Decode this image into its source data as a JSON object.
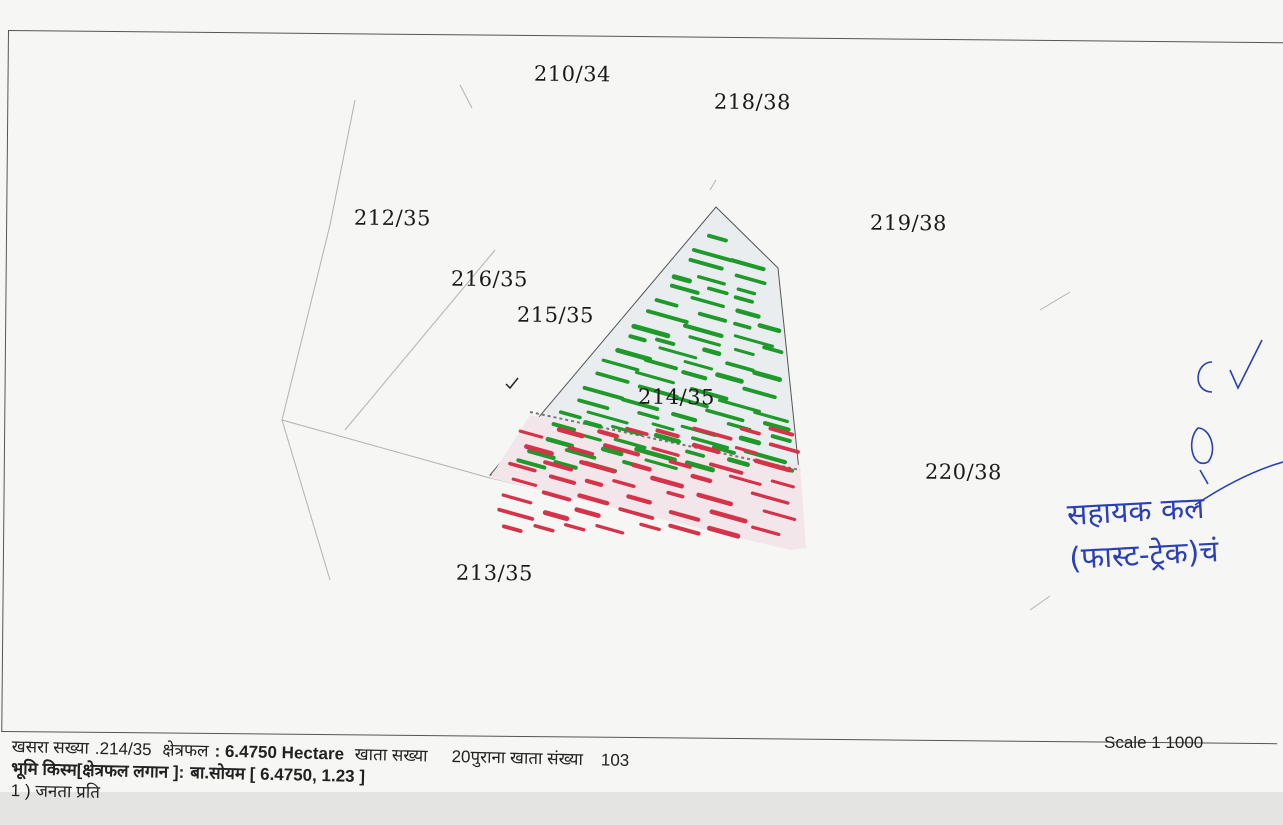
{
  "plot_labels": {
    "p210": "210/34",
    "p218": "218/38",
    "p212": "212/35",
    "p219": "219/38",
    "p216": "216/35",
    "p215": "215/35",
    "p214": "214/35",
    "p220": "220/38",
    "p213": "213/35"
  },
  "scale_text": "Scale 1 1000",
  "footer": {
    "line1_khasra_label": "खसरा सख्या",
    "line1_khasra_value": ".214/35",
    "line1_area_label": "क्षेत्रफल",
    "line1_area_value": ": 6.4750 Hectare",
    "line1_khata_label": "खाता सख्या",
    "line1_khata_value": "20",
    "line1_old_khata_label": "पुराना खाता संख्या",
    "line1_old_khata_value": "103",
    "line2_type_label": "भूमि किस्म[क्षेत्रफल लगान ]:",
    "line2_type_value": "बा.सोयम [ 6.4750, 1.23 ]",
    "line3_partial": "1 ) जनता प्रति"
  },
  "stamp": {
    "line1": "सहायक कल",
    "line2": "(फास्ट-ट्रेक)चं"
  },
  "colors": {
    "green_hatch": "#1f9a2a",
    "red_hatch": "#d6324a",
    "stamp_ink": "#2a3fb8"
  }
}
